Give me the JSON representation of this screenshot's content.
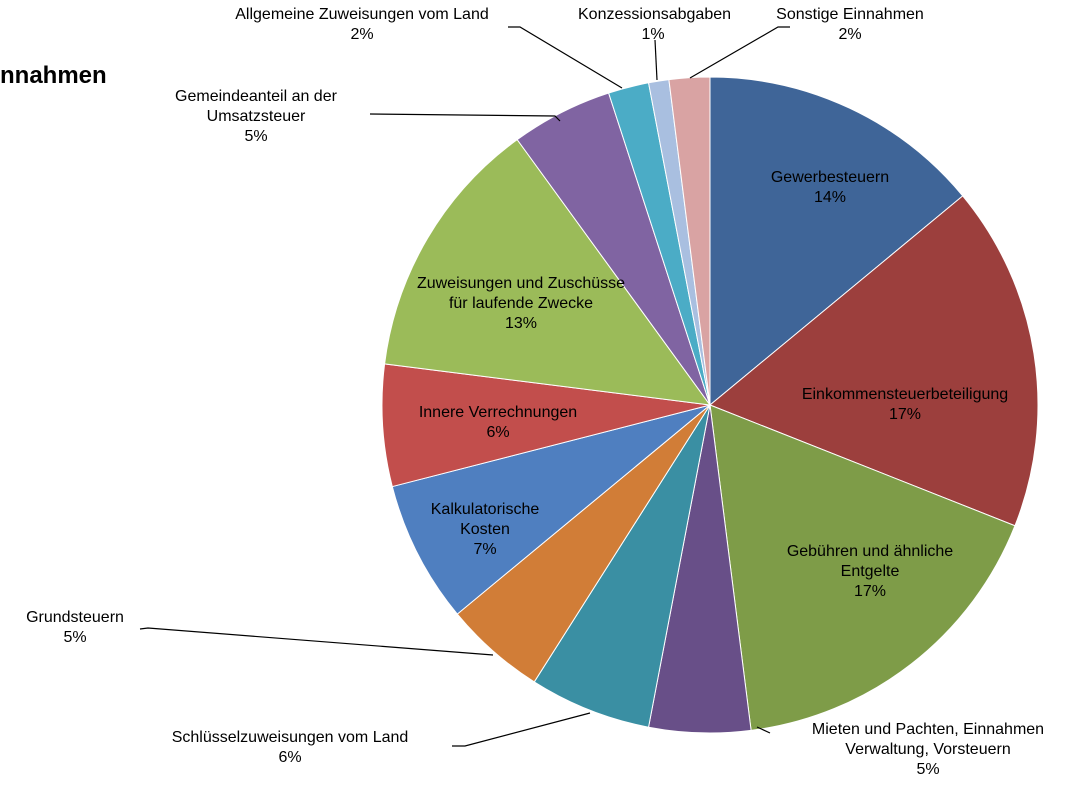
{
  "chart_data": {
    "type": "pie",
    "title": "nnahmen",
    "categories": [
      "Gewerbesteuern",
      "Einkommensteuerbeteiligung",
      "Gebühren und ähnliche Entgelte",
      "Mieten und Pachten, Einnahmen Verwaltung, Vorsteuern",
      "Schlüsselzuweisungen vom Land",
      "Grundsteuern",
      "Kalkulatorische Kosten",
      "Innere Verrechnungen",
      "Zuweisungen und Zuschüsse für laufende Zwecke",
      "Gemeindeanteil an der Umsatzsteuer",
      "Allgemeine Zuweisungen vom Land",
      "Konzessionsabgaben",
      "Sonstige Einnahmen"
    ],
    "values": [
      14,
      17,
      17,
      5,
      6,
      5,
      7,
      6,
      13,
      5,
      2,
      1,
      2
    ],
    "value_labels": [
      "14%",
      "17%",
      "17%",
      "5%",
      "6%",
      "5%",
      "7%",
      "6%",
      "13%",
      "5%",
      "2%",
      "1%",
      "2%"
    ],
    "colors": [
      "#3f6598",
      "#9c3f3d",
      "#7e9c48",
      "#684f88",
      "#3a8fa3",
      "#d17d37",
      "#4f7fc0",
      "#c24e4c",
      "#9bbb59",
      "#8064a2",
      "#4bacc6",
      "#a9bfe0",
      "#d9a3a3"
    ]
  }
}
